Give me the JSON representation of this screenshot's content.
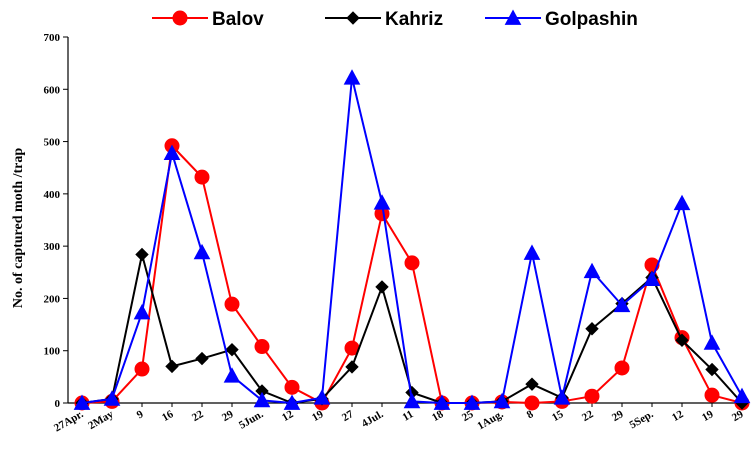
{
  "chart_data": {
    "type": "line",
    "title": "",
    "xlabel": "",
    "ylabel": "No. of captured moth /trap",
    "ylim": [
      0,
      700
    ],
    "yticks": [
      0,
      100,
      200,
      300,
      400,
      500,
      600,
      700
    ],
    "grid": false,
    "legend_position": "top",
    "x_labels": [
      "27Apr.",
      "2May",
      "9",
      "16",
      "22",
      "29",
      "5Jun.",
      "12",
      "19",
      "27",
      "4Jul.",
      "11",
      "18",
      "25",
      "1Aug.",
      "8",
      "15",
      "22",
      "29",
      "5Sep.",
      "12",
      "19",
      "29"
    ],
    "x": [
      "27Apr.",
      "2May",
      "9",
      "16",
      "22",
      "29",
      "5Jun.",
      "12",
      "19",
      "27",
      "4Jul.",
      "11",
      "18",
      "25",
      "1Aug.",
      "8",
      "15",
      "22",
      "29",
      "5Sep.",
      "12",
      "19",
      "29"
    ],
    "series": [
      {
        "name": "Balov",
        "color": "#ff0000",
        "marker": "circle",
        "values": [
          0,
          3,
          65,
          492,
          432,
          189,
          108,
          30,
          0,
          105,
          362,
          268,
          0,
          0,
          2,
          0,
          3,
          13,
          67,
          264,
          125,
          15,
          0
        ]
      },
      {
        "name": "Kahriz",
        "color": "#000000",
        "marker": "diamond",
        "values": [
          0,
          8,
          284,
          70,
          85,
          102,
          23,
          0,
          8,
          69,
          222,
          20,
          0,
          0,
          3,
          36,
          10,
          142,
          190,
          240,
          120,
          64,
          0
        ]
      },
      {
        "name": "Golpashin",
        "color": "#0000ff",
        "marker": "triangle",
        "values": [
          0,
          8,
          173,
          478,
          288,
          52,
          5,
          0,
          10,
          622,
          383,
          3,
          0,
          0,
          3,
          287,
          10,
          252,
          187,
          237,
          382,
          115,
          13
        ]
      }
    ]
  }
}
